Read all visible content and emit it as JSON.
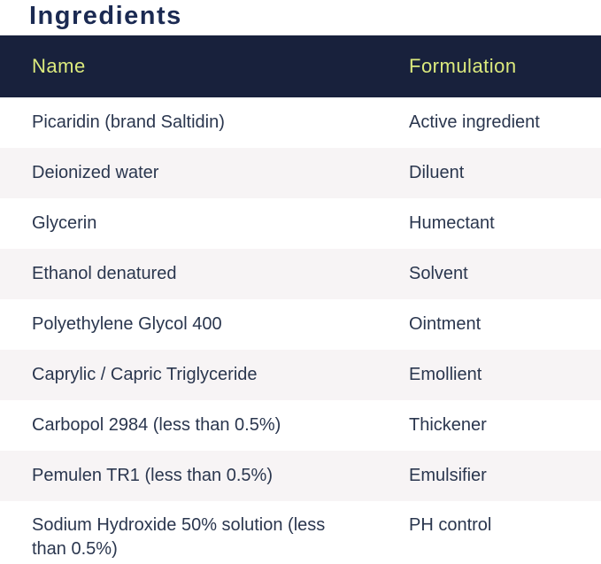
{
  "page": {
    "title": "Ingredients"
  },
  "table": {
    "columns": [
      {
        "label": "Name"
      },
      {
        "label": "Formulation"
      }
    ],
    "rows": [
      {
        "name": "Picaridin (brand Saltidin)",
        "formulation": "Active ingredient"
      },
      {
        "name": "Deionized water",
        "formulation": "Diluent"
      },
      {
        "name": "Glycerin",
        "formulation": "Humectant"
      },
      {
        "name": "Ethanol denatured",
        "formulation": "Solvent"
      },
      {
        "name": "Polyethylene Glycol 400",
        "formulation": "Ointment"
      },
      {
        "name": "Caprylic / Capric Triglyceride",
        "formulation": "Emollient"
      },
      {
        "name": "Carbopol 2984 (less than 0.5%)",
        "formulation": "Thickener"
      },
      {
        "name": "Pemulen TR1 (less than 0.5%)",
        "formulation": "Emulsifier"
      },
      {
        "name": "Sodium Hydroxide 50% solution (less than 0.5%)",
        "formulation": "PH control"
      }
    ]
  },
  "colors": {
    "title_text": "#1b2a52",
    "header_background": "#18213c",
    "header_text": "#dcea7d",
    "row_text": "#2a364e",
    "row_alt_background": "#f7f4f5",
    "row_background": "#ffffff"
  }
}
